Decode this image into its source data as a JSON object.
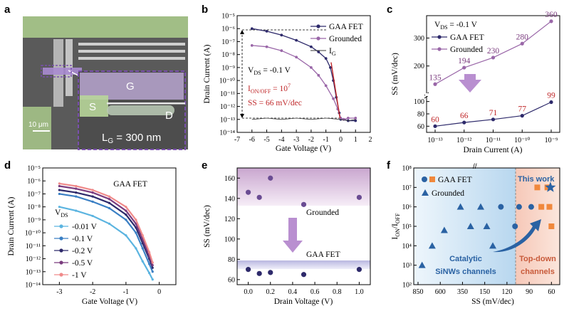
{
  "panels": {
    "a": {
      "label": "a",
      "gate_label": "G",
      "source_label": "S",
      "drain_label": "D",
      "scale_bar": "10 μm",
      "lg_text": "LG = 300 nm"
    },
    "b": {
      "label": "b"
    },
    "c": {
      "label": "c"
    },
    "d": {
      "label": "d"
    },
    "e": {
      "label": "e"
    },
    "f": {
      "label": "f"
    }
  },
  "colors": {
    "gaa": "#2e2a6b",
    "grounded": "#9a67a8",
    "red": "#c0282a",
    "orange": "#f0883c",
    "blue": "#2a62a3"
  },
  "chart_data": [
    {
      "panel": "b",
      "type": "line",
      "xlabel": "Gate Voltage (V)",
      "ylabel": "Drain Current (A)",
      "xlim": [
        -7,
        2
      ],
      "ylim_log10": [
        -14,
        -5
      ],
      "xticks": [
        "-7",
        "-6",
        "-5",
        "-4",
        "-3",
        "-2",
        "-1",
        "0",
        "1",
        "2"
      ],
      "yticks": [
        "10⁻¹⁴",
        "10⁻¹³",
        "10⁻¹²",
        "10⁻¹¹",
        "10⁻¹⁰",
        "10⁻⁹",
        "10⁻⁸",
        "10⁻⁷",
        "10⁻⁶",
        "10⁻⁵"
      ],
      "legend": [
        "GAA FET",
        "Grounded",
        "I_G"
      ],
      "annotations": {
        "vds": "V_DS = -0.1 V",
        "onoff": "I_ON/OFF = 10⁷",
        "ss": "SS = 66 mV/dec"
      },
      "series": [
        {
          "name": "GAA FET",
          "x": [
            -6,
            -5,
            -4,
            -3,
            -2,
            -1.5,
            -1,
            -0.7,
            -0.5,
            -0.3,
            -0.1,
            0,
            0.2,
            0.5,
            1
          ],
          "log10y": [
            -6.0,
            -6.2,
            -6.5,
            -6.9,
            -7.4,
            -7.8,
            -8.3,
            -9.0,
            -10.0,
            -11.3,
            -12.5,
            -13.0,
            -13.0,
            -13.1,
            -13.1
          ]
        },
        {
          "name": "Grounded",
          "x": [
            -6,
            -5,
            -4,
            -3,
            -2,
            -1.5,
            -1,
            -0.5,
            -0.2,
            0,
            0.2,
            0.5,
            1
          ],
          "log10y": [
            -7.3,
            -7.4,
            -7.7,
            -8.2,
            -9.0,
            -9.6,
            -10.4,
            -11.4,
            -12.2,
            -12.9,
            -13.0,
            -12.9,
            -12.9
          ]
        },
        {
          "name": "I_G",
          "x": [
            -6,
            -5,
            -4,
            -3,
            -2,
            -1,
            0,
            0.5,
            1
          ],
          "log10y": [
            -13.0,
            -12.9,
            -13.0,
            -12.9,
            -13.0,
            -12.9,
            -13.0,
            -13.1,
            -13.0
          ]
        }
      ]
    },
    {
      "panel": "c",
      "type": "line",
      "xlabel": "Drain Current (A)",
      "ylabel": "SS (mV/dec)",
      "xticks": [
        "10⁻¹³",
        "10⁻¹²",
        "10⁻¹¹",
        "10⁻¹⁰",
        "10⁻⁹"
      ],
      "yticks_top": [
        "200",
        "300"
      ],
      "yticks_bottom": [
        "60",
        "80",
        "100"
      ],
      "legend": [
        "GAA FET",
        "Grounded"
      ],
      "annotation": "V_DS = -0.1 V",
      "series": [
        {
          "name": "GAA FET",
          "log10x": [
            -13,
            -12,
            -11,
            -10,
            -9
          ],
          "values": [
            60,
            66,
            71,
            77,
            99
          ],
          "labels": [
            "60",
            "66",
            "71",
            "77",
            "99"
          ]
        },
        {
          "name": "Grounded",
          "log10x": [
            -13,
            -12,
            -11,
            -10,
            -9
          ],
          "values": [
            135,
            194,
            230,
            280,
            360
          ],
          "labels": [
            "135",
            "194",
            "230",
            "280",
            "360"
          ]
        }
      ]
    },
    {
      "panel": "d",
      "type": "line",
      "title": "GAA FET",
      "xlabel": "Gate Voltage (V)",
      "ylabel": "Drain Current (A)",
      "xlim": [
        -3.5,
        0.5
      ],
      "ylim_log10": [
        -14,
        -5
      ],
      "xticks": [
        "-3",
        "-2",
        "-1",
        "0"
      ],
      "yticks": [
        "10⁻¹⁴",
        "10⁻¹³",
        "10⁻¹²",
        "10⁻¹¹",
        "10⁻¹⁰",
        "10⁻⁹",
        "10⁻⁸",
        "10⁻⁷",
        "10⁻⁶",
        "10⁻⁵"
      ],
      "legend_title": "V_DS",
      "series": [
        {
          "name": "-0.01 V",
          "color": "#5bb4e0",
          "x": [
            -3,
            -2.5,
            -2,
            -1.5,
            -1,
            -0.7,
            -0.5,
            -0.3,
            -0.2
          ],
          "log10y": [
            -8.0,
            -8.3,
            -8.7,
            -9.3,
            -10.2,
            -11.2,
            -12.2,
            -13.1,
            -13.6
          ]
        },
        {
          "name": "-0.1 V",
          "color": "#3a7fc4",
          "x": [
            -3,
            -2.5,
            -2,
            -1.5,
            -1,
            -0.7,
            -0.5,
            -0.3,
            -0.2
          ],
          "log10y": [
            -7.0,
            -7.2,
            -7.6,
            -8.1,
            -9.0,
            -10.0,
            -11.2,
            -12.4,
            -13.0
          ]
        },
        {
          "name": "-0.2 V",
          "color": "#2e2a6b",
          "x": [
            -3,
            -2.5,
            -2,
            -1.5,
            -1,
            -0.7,
            -0.5,
            -0.3,
            -0.2
          ],
          "log10y": [
            -6.7,
            -6.9,
            -7.2,
            -7.7,
            -8.6,
            -9.6,
            -10.8,
            -12.0,
            -12.7
          ]
        },
        {
          "name": "-0.5 V",
          "color": "#7a3b7e",
          "x": [
            -3,
            -2.5,
            -2,
            -1.5,
            -1,
            -0.7,
            -0.5,
            -0.3,
            -0.2
          ],
          "log10y": [
            -6.4,
            -6.6,
            -6.9,
            -7.4,
            -8.3,
            -9.3,
            -10.5,
            -11.8,
            -12.5
          ]
        },
        {
          "name": "-1 V",
          "color": "#f08a8a",
          "x": [
            -3,
            -2.5,
            -2,
            -1.5,
            -1,
            -0.7,
            -0.5,
            -0.3,
            -0.2
          ],
          "log10y": [
            -6.2,
            -6.4,
            -6.7,
            -7.2,
            -8.0,
            -9.0,
            -10.2,
            -11.5,
            -12.3
          ]
        }
      ]
    },
    {
      "panel": "e",
      "type": "scatter",
      "xlabel": "Drain Voltage (V)",
      "ylabel": "SS (mV/dec)",
      "xlim": [
        -0.1,
        1.1
      ],
      "ylim": [
        55,
        170
      ],
      "xticks": [
        "0.0",
        "0.2",
        "0.4",
        "0.6",
        "0.8",
        "1.0"
      ],
      "yticks": [
        "60",
        "80",
        "100",
        "120",
        "140",
        "160"
      ],
      "band_labels": [
        "Grounded",
        "GAA FET"
      ],
      "series": [
        {
          "name": "Grounded",
          "x": [
            0.0,
            0.1,
            0.2,
            0.5,
            1.0
          ],
          "values": [
            146,
            141,
            160,
            134,
            141
          ]
        },
        {
          "name": "GAA FET",
          "x": [
            0.0,
            0.1,
            0.2,
            0.5,
            1.0
          ],
          "values": [
            70,
            66,
            67,
            65,
            70
          ]
        }
      ]
    },
    {
      "panel": "f",
      "type": "scatter",
      "xlabel": "SS (mV/dec)",
      "ylabel": "I_ON/I_OFF",
      "xticks": [
        "850",
        "600",
        "350",
        "150",
        "120",
        "90",
        "60"
      ],
      "yticks": [
        "10²",
        "10³",
        "10⁴",
        "10⁵",
        "10⁶",
        "10⁷",
        "10⁸"
      ],
      "legend": [
        "GAA FET",
        "Grounded"
      ],
      "region_labels": [
        "Catalytic",
        "SiNWs channels",
        "Top-down",
        "channels"
      ],
      "highlight": "This work",
      "series": [
        {
          "name": "GAA FET (circles)",
          "ss_tick_pos": [
            5.0,
            5.6,
            4.8,
            4.1
          ],
          "log10y": [
            6.0,
            6.0,
            5.0,
            6.0
          ]
        },
        {
          "name": "Grounded (triangles)",
          "ss_tick_pos": [
            0.2,
            0.7,
            1.3,
            2.1,
            2.6,
            3.1,
            3.4,
            3.7
          ],
          "log10y": [
            3.0,
            4.0,
            4.8,
            6.0,
            5.0,
            6.0,
            5.0,
            4.0
          ]
        },
        {
          "name": "Top-down (squares)",
          "ss_tick_pos": [
            5.9,
            6.1,
            6.4,
            6.5,
            6.6
          ],
          "log10y": [
            7.0,
            6.0,
            7.0,
            6.0,
            5.0
          ]
        },
        {
          "name": "This work",
          "ss_tick_pos": [
            6.55
          ],
          "log10y": [
            7.0
          ]
        }
      ]
    }
  ]
}
